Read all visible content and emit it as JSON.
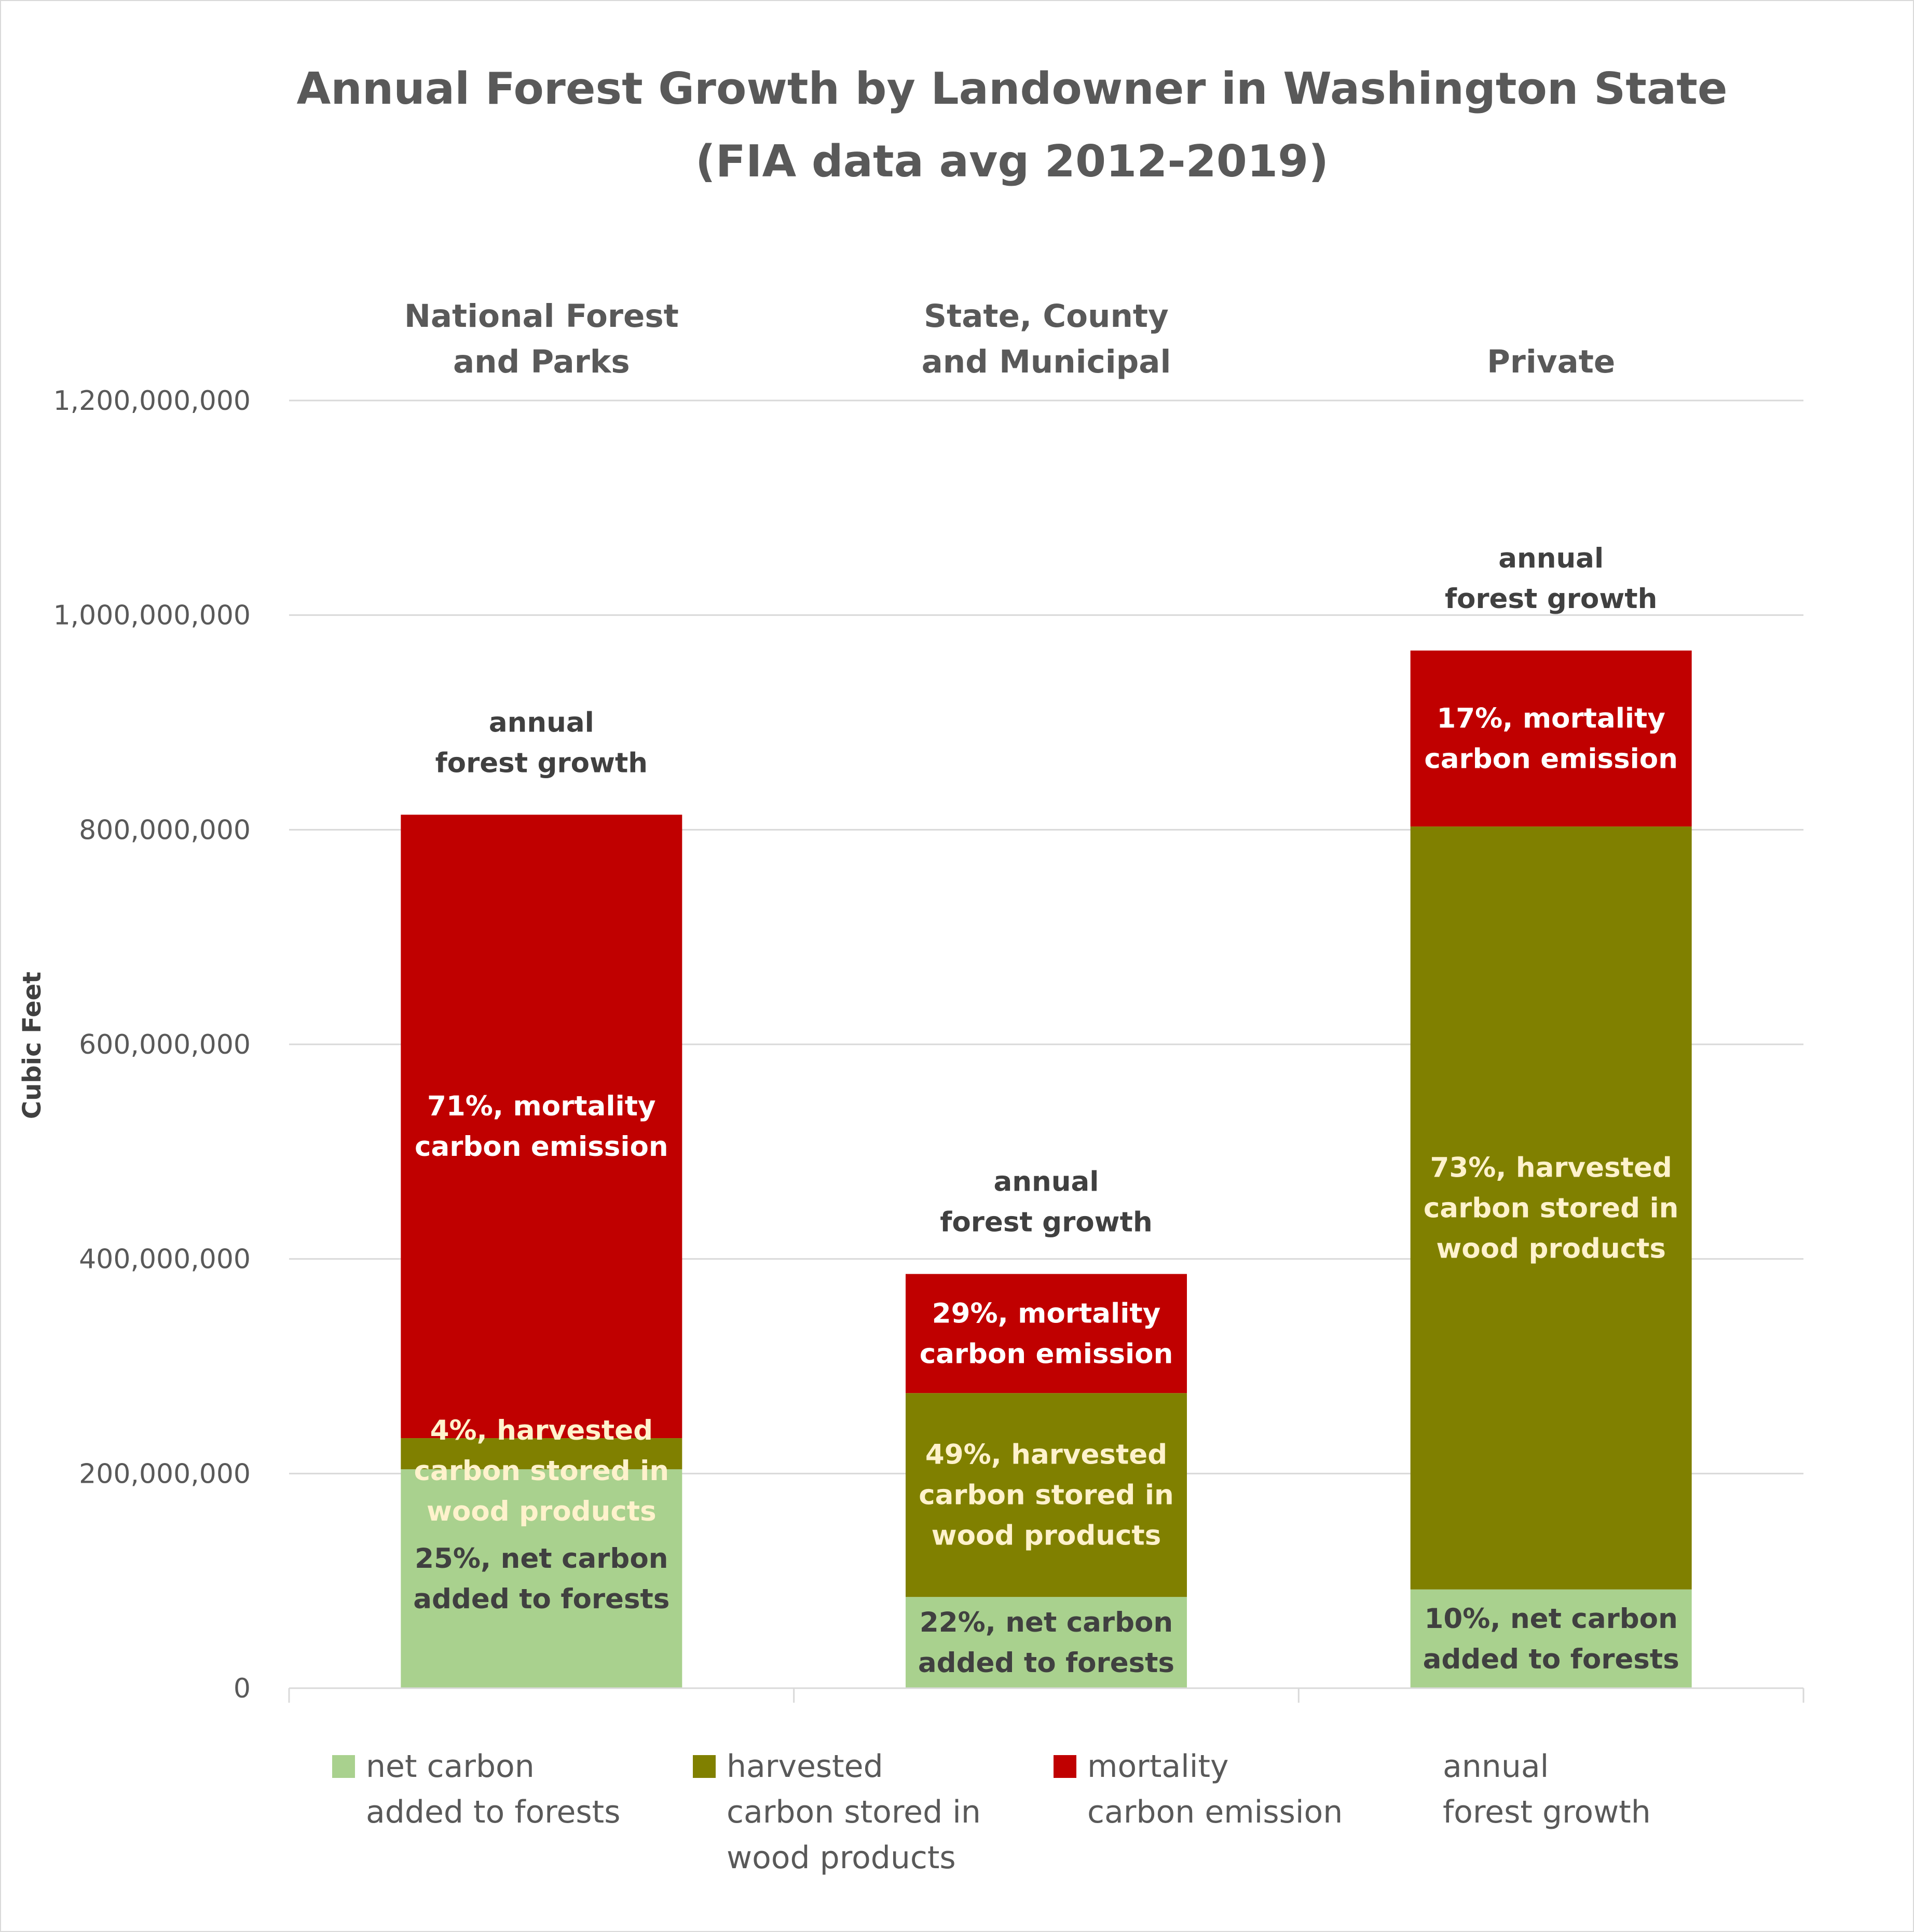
{
  "chart_data": {
    "type": "bar",
    "stacked": true,
    "title": "Annual Forest Growth by Landowner in Washington State",
    "subtitle": "(FIA data avg 2012-2019)",
    "ylabel": "Cubic Feet",
    "ylim": [
      0,
      1200000000
    ],
    "yticks": [
      0,
      200000000,
      400000000,
      600000000,
      800000000,
      1000000000,
      1200000000
    ],
    "ytick_labels": [
      "0",
      "200,000,000",
      "400,000,000",
      "600,000,000",
      "800,000,000",
      "1,000,000,000",
      "1,200,000,000"
    ],
    "grid": true,
    "legend_position": "bottom",
    "categories": [
      [
        "National Forest",
        "and Parks"
      ],
      [
        "State, County",
        "and Municipal"
      ],
      [
        "Private"
      ]
    ],
    "totals": [
      814000000,
      386000000,
      967000000
    ],
    "total_label": [
      "annual",
      "forest growth"
    ],
    "series": [
      {
        "name": [
          "net carbon",
          "added to forests"
        ],
        "color": "#a9d18e",
        "values": [
          204000000,
          85000000,
          92000000
        ],
        "labels": [
          [
            "25%, net carbon",
            "added to forests"
          ],
          [
            "22%, net carbon",
            "added to forests"
          ],
          [
            "10%, net carbon",
            "added to forests"
          ]
        ],
        "label_color": "#404040"
      },
      {
        "name": [
          "harvested",
          "carbon stored in",
          "wood products"
        ],
        "color": "#808000",
        "values": [
          29000000,
          190000000,
          711000000
        ],
        "labels": [
          [
            "4%, harvested",
            "carbon stored in",
            "wood products"
          ],
          [
            "49%, harvested",
            "carbon stored in",
            "wood products"
          ],
          [
            "73%, harvested",
            "carbon stored in",
            "wood products"
          ]
        ],
        "label_color": "#fff2cc"
      },
      {
        "name": [
          "mortality",
          "carbon emission"
        ],
        "color": "#c00000",
        "values": [
          581000000,
          111000000,
          164000000
        ],
        "labels": [
          [
            "71%, mortality",
            "carbon emission"
          ],
          [
            "29%, mortality",
            "carbon emission"
          ],
          [
            "17%, mortality",
            "carbon emission"
          ]
        ],
        "label_color": "#ffffff"
      }
    ],
    "legend_extra": [
      "annual",
      "forest growth"
    ]
  }
}
